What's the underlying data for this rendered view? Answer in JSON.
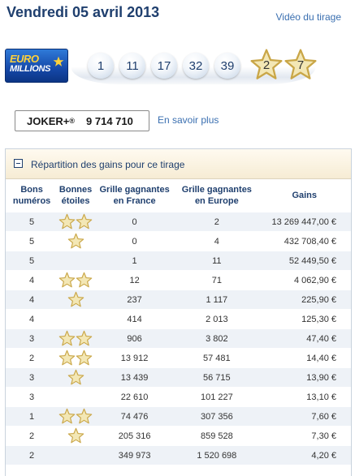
{
  "header": {
    "title": "Vendredi 05 avril 2013",
    "video_link": "Vidéo du tirage"
  },
  "logo": {
    "line1": "EURO",
    "line2": "MILLIONS"
  },
  "draw": {
    "balls": [
      "1",
      "11",
      "17",
      "32",
      "39"
    ],
    "stars": [
      "2",
      "7"
    ]
  },
  "joker": {
    "label": "JOKER+",
    "reg": "®",
    "number": "9 714 710",
    "more_link": "En savoir plus"
  },
  "panel": {
    "title": "Répartition des gains pour ce tirage",
    "columns": {
      "c1": [
        "Bons",
        "numéros"
      ],
      "c2": [
        "Bonnes",
        "étoiles"
      ],
      "c3": [
        "Grille gagnantes",
        "en France"
      ],
      "c4": [
        "Grille gagnantes",
        "en Europe"
      ],
      "c5": [
        "Gains"
      ]
    },
    "rows": [
      {
        "numbers": "5",
        "stars": 2,
        "france": "0",
        "europe": "2",
        "gain": "13 269 447,00 €"
      },
      {
        "numbers": "5",
        "stars": 1,
        "france": "0",
        "europe": "4",
        "gain": "432 708,40 €"
      },
      {
        "numbers": "5",
        "stars": 0,
        "france": "1",
        "europe": "11",
        "gain": "52 449,50 €"
      },
      {
        "numbers": "4",
        "stars": 2,
        "france": "12",
        "europe": "71",
        "gain": "4 062,90 €"
      },
      {
        "numbers": "4",
        "stars": 1,
        "france": "237",
        "europe": "1 117",
        "gain": "225,90 €"
      },
      {
        "numbers": "4",
        "stars": 0,
        "france": "414",
        "europe": "2 013",
        "gain": "125,30 €"
      },
      {
        "numbers": "3",
        "stars": 2,
        "france": "906",
        "europe": "3 802",
        "gain": "47,40 €"
      },
      {
        "numbers": "2",
        "stars": 2,
        "france": "13 912",
        "europe": "57 481",
        "gain": "14,40 €"
      },
      {
        "numbers": "3",
        "stars": 1,
        "france": "13 439",
        "europe": "56 715",
        "gain": "13,90 €"
      },
      {
        "numbers": "3",
        "stars": 0,
        "france": "22 610",
        "europe": "101 227",
        "gain": "13,10 €"
      },
      {
        "numbers": "1",
        "stars": 2,
        "france": "74 476",
        "europe": "307 356",
        "gain": "7,60 €"
      },
      {
        "numbers": "2",
        "stars": 1,
        "france": "205 316",
        "europe": "859 528",
        "gain": "7,30 €"
      },
      {
        "numbers": "2",
        "stars": 0,
        "france": "349 973",
        "europe": "1 520 698",
        "gain": "4,20 €"
      }
    ]
  },
  "colors": {
    "title": "#1f3f6e",
    "link": "#3a6fb0",
    "row_alt": "#eef2f7",
    "star_fill": "#f3e7b5",
    "star_stroke": "#c9a647"
  }
}
